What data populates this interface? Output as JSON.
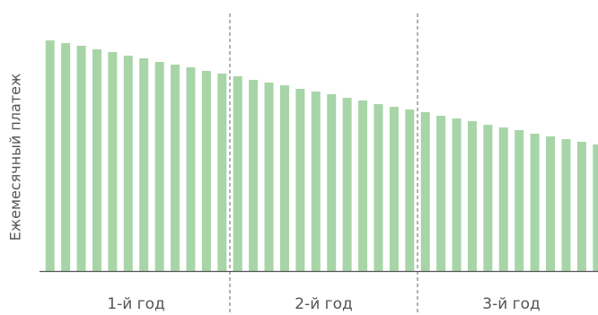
{
  "chart_data": {
    "type": "bar",
    "ylabel": "Ежемесячный платеж",
    "color": "#a8d5a8",
    "ylim": [
      0,
      257
    ],
    "groups": [
      {
        "label": "1-й год",
        "values": [
          257,
          254,
          251,
          247,
          244,
          240,
          237,
          233,
          230,
          227,
          223,
          220
        ]
      },
      {
        "label": "2-й год",
        "values": [
          217,
          213,
          210,
          207,
          203,
          200,
          197,
          193,
          190,
          186,
          183,
          180
        ]
      },
      {
        "label": "3-й год",
        "values": [
          177,
          173,
          170,
          167,
          163,
          160,
          157,
          153,
          150,
          147,
          144,
          141
        ]
      }
    ]
  }
}
